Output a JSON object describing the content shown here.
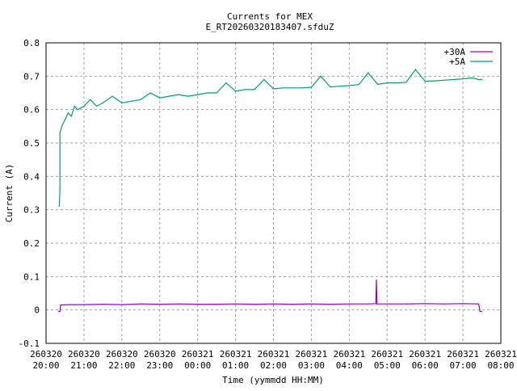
{
  "chart_data": {
    "type": "line",
    "title": "Currents for MEX",
    "subtitle": "E_RT20260320183407.sfduZ",
    "xlabel": "Time (yymmdd HH:MM)",
    "ylabel": "Current (A)",
    "ylim": [
      -0.1,
      0.8
    ],
    "yticks": [
      "-0.1",
      "0",
      "0.1",
      "0.2",
      "0.3",
      "0.4",
      "0.5",
      "0.6",
      "0.7",
      "0.8"
    ],
    "xlim": [
      "260320 20:00",
      "260321 08:00"
    ],
    "xticks": [
      [
        "260320",
        "20:00"
      ],
      [
        "260320",
        "21:00"
      ],
      [
        "260320",
        "22:00"
      ],
      [
        "260320",
        "23:00"
      ],
      [
        "260321",
        "00:00"
      ],
      [
        "260321",
        "01:00"
      ],
      [
        "260321",
        "02:00"
      ],
      [
        "260321",
        "03:00"
      ],
      [
        "260321",
        "04:00"
      ],
      [
        "260321",
        "05:00"
      ],
      [
        "260321",
        "06:00"
      ],
      [
        "260321",
        "07:00"
      ],
      [
        "260321",
        "08:00"
      ]
    ],
    "grid": true,
    "legend": "top-right",
    "series": [
      {
        "name": "+30A",
        "color": "#9400d3",
        "points": [
          [
            "260320 20:20",
            -0.005
          ],
          [
            "260320 20:22",
            -0.004
          ],
          [
            "260320 20:23",
            0.015
          ],
          [
            "260320 20:40",
            0.016
          ],
          [
            "260320 21:00",
            0.016
          ],
          [
            "260320 21:30",
            0.017
          ],
          [
            "260320 22:00",
            0.016
          ],
          [
            "260320 22:30",
            0.018
          ],
          [
            "260320 23:00",
            0.017
          ],
          [
            "260320 23:30",
            0.018
          ],
          [
            "260321 00:00",
            0.017
          ],
          [
            "260321 00:30",
            0.017
          ],
          [
            "260321 01:00",
            0.018
          ],
          [
            "260321 01:30",
            0.017
          ],
          [
            "260321 02:00",
            0.018
          ],
          [
            "260321 02:30",
            0.017
          ],
          [
            "260321 03:00",
            0.018
          ],
          [
            "260321 03:30",
            0.017
          ],
          [
            "260321 04:00",
            0.018
          ],
          [
            "260321 04:30",
            0.018
          ],
          [
            "260321 04:42",
            0.019
          ],
          [
            "260321 04:43",
            0.09
          ],
          [
            "260321 04:44",
            0.018
          ],
          [
            "260321 05:00",
            0.018
          ],
          [
            "260321 05:30",
            0.018
          ],
          [
            "260321 06:00",
            0.019
          ],
          [
            "260321 06:30",
            0.018
          ],
          [
            "260321 07:00",
            0.019
          ],
          [
            "260321 07:25",
            0.018
          ],
          [
            "260321 07:27",
            -0.004
          ],
          [
            "260321 07:30",
            -0.005
          ]
        ]
      },
      {
        "name": "+5A",
        "color": "#009e73",
        "points": [
          [
            "260320 20:21",
            0.31
          ],
          [
            "260320 20:22",
            0.36
          ],
          [
            "260320 20:22",
            0.53
          ],
          [
            "260320 20:25",
            0.55
          ],
          [
            "260320 20:30",
            0.57
          ],
          [
            "260320 20:35",
            0.59
          ],
          [
            "260320 20:40",
            0.58
          ],
          [
            "260320 20:45",
            0.61
          ],
          [
            "260320 20:50",
            0.6
          ],
          [
            "260320 21:00",
            0.61
          ],
          [
            "260320 21:10",
            0.63
          ],
          [
            "260320 21:20",
            0.61
          ],
          [
            "260320 21:30",
            0.62
          ],
          [
            "260320 21:45",
            0.64
          ],
          [
            "260320 22:00",
            0.62
          ],
          [
            "260320 22:15",
            0.625
          ],
          [
            "260320 22:30",
            0.63
          ],
          [
            "260320 22:45",
            0.65
          ],
          [
            "260320 23:00",
            0.635
          ],
          [
            "260320 23:15",
            0.64
          ],
          [
            "260320 23:30",
            0.645
          ],
          [
            "260320 23:45",
            0.64
          ],
          [
            "260321 00:00",
            0.645
          ],
          [
            "260321 00:15",
            0.65
          ],
          [
            "260321 00:30",
            0.65
          ],
          [
            "260321 00:45",
            0.68
          ],
          [
            "260321 01:00",
            0.655
          ],
          [
            "260321 01:15",
            0.66
          ],
          [
            "260321 01:30",
            0.66
          ],
          [
            "260321 01:45",
            0.69
          ],
          [
            "260321 02:00",
            0.662
          ],
          [
            "260321 02:15",
            0.665
          ],
          [
            "260321 02:30",
            0.665
          ],
          [
            "260321 02:45",
            0.665
          ],
          [
            "260321 03:00",
            0.667
          ],
          [
            "260321 03:15",
            0.7
          ],
          [
            "260321 03:30",
            0.668
          ],
          [
            "260321 03:45",
            0.67
          ],
          [
            "260321 04:00",
            0.672
          ],
          [
            "260321 04:15",
            0.675
          ],
          [
            "260321 04:30",
            0.71
          ],
          [
            "260321 04:45",
            0.676
          ],
          [
            "260321 05:00",
            0.68
          ],
          [
            "260321 05:15",
            0.68
          ],
          [
            "260321 05:30",
            0.682
          ],
          [
            "260321 05:45",
            0.72
          ],
          [
            "260321 06:00",
            0.685
          ],
          [
            "260321 06:15",
            0.686
          ],
          [
            "260321 06:30",
            0.688
          ],
          [
            "260321 06:45",
            0.69
          ],
          [
            "260321 07:00",
            0.692
          ],
          [
            "260321 07:15",
            0.695
          ],
          [
            "260321 07:25",
            0.69
          ],
          [
            "260321 07:30",
            0.69
          ]
        ]
      }
    ]
  }
}
